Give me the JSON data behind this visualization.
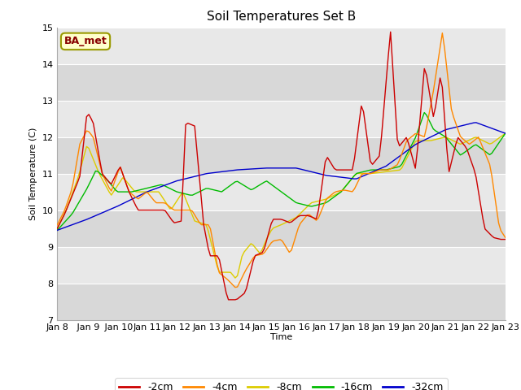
{
  "title": "Soil Temperatures Set B",
  "xlabel": "Time",
  "ylabel": "Soil Temperature (C)",
  "ylim": [
    7.0,
    15.0
  ],
  "yticks": [
    7.0,
    8.0,
    9.0,
    10.0,
    11.0,
    12.0,
    13.0,
    14.0,
    15.0
  ],
  "xtick_labels": [
    "Jan 8",
    " Jan 9",
    " Jan 10",
    "Jan 11",
    "Jan 12",
    "Jan 13",
    "Jan 14",
    "Jan 15",
    "Jan 16",
    "Jan 17",
    "Jan 18",
    "Jan 19",
    "Jan 20",
    "Jan 21",
    "Jan 22",
    "Jan 23"
  ],
  "legend_label": "BA_met",
  "series_colors": [
    "#cc0000",
    "#ff8800",
    "#ddcc00",
    "#00bb00",
    "#0000cc"
  ],
  "series_labels": [
    "-2cm",
    "-4cm",
    "-8cm",
    "-16cm",
    "-32cm"
  ],
  "line_width": 1.0,
  "fig_bg_color": "#ffffff",
  "plot_bg_color": "#e8e8e8",
  "annotation_bg": "#ffffcc",
  "annotation_text_color": "#880000",
  "grid_color": "#ffffff",
  "band_color_dark": "#d8d8d8",
  "band_color_light": "#e8e8e8",
  "title_fontsize": 11,
  "label_fontsize": 8,
  "ylabel_fontsize": 8
}
